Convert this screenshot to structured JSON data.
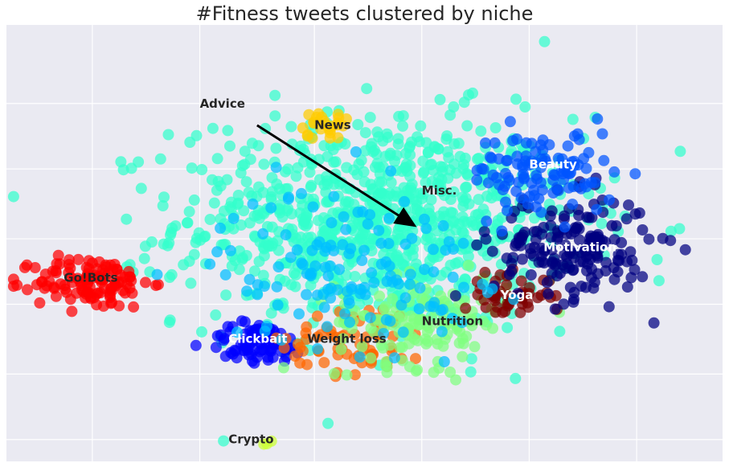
{
  "chart_data": {
    "type": "scatter",
    "title": "#Fitness tweets clustered by niche",
    "xlabel": "",
    "ylabel": "",
    "grid": true,
    "background": "#EAEAF2",
    "xlim": [
      0,
      100
    ],
    "ylim": [
      0,
      100
    ],
    "x_gridlines": [
      12,
      27,
      43,
      58,
      73,
      88
    ],
    "y_gridlines": [
      5,
      20,
      36,
      51,
      67,
      82
    ],
    "clusters": [
      {
        "name": "Go!Bots",
        "color": "#FF0000",
        "label_color": "#262626",
        "center": [
          12,
          41
        ],
        "spread": [
          4,
          3
        ],
        "count": 120,
        "label_at": [
          8,
          42
        ]
      },
      {
        "name": "Clickbait",
        "color": "#0000FF",
        "label_color": "#FFFFFF",
        "center": [
          35,
          27
        ],
        "spread": [
          3.5,
          2.5
        ],
        "count": 80,
        "label_at": [
          31,
          28
        ]
      },
      {
        "name": "Crypto",
        "color": "#CCFF33",
        "label_color": "#262626",
        "center": [
          37,
          4
        ],
        "spread": [
          0.4,
          0.4
        ],
        "count": 3,
        "label_at": [
          31,
          5
        ]
      },
      {
        "name": "Weight loss",
        "color": "#FF6600",
        "label_color": "#262626",
        "center": [
          49,
          28
        ],
        "spread": [
          5,
          4
        ],
        "count": 70,
        "label_at": [
          42,
          28
        ]
      },
      {
        "name": "Nutrition",
        "color": "#7FFF7F",
        "label_color": "#262626",
        "center": [
          58,
          32
        ],
        "spread": [
          6,
          5
        ],
        "count": 140,
        "label_at": [
          58,
          32
        ]
      },
      {
        "name": "Yoga",
        "color": "#800000",
        "label_color": "#FFFFFF",
        "center": [
          70,
          38
        ],
        "spread": [
          3,
          2.5
        ],
        "count": 55,
        "label_at": [
          69,
          38
        ]
      },
      {
        "name": "Motivation",
        "color": "#000080",
        "label_color": "#FFFFFF",
        "center": [
          79,
          49
        ],
        "spread": [
          5.5,
          6
        ],
        "count": 180,
        "label_at": [
          75,
          49
        ]
      },
      {
        "name": "Beauty",
        "color": "#0055FF",
        "label_color": "#FFFFFF",
        "center": [
          75,
          66
        ],
        "spread": [
          5,
          5
        ],
        "count": 110,
        "label_at": [
          73,
          68
        ]
      },
      {
        "name": "News",
        "color": "#FFCC00",
        "label_color": "#262626",
        "center": [
          44,
          77
        ],
        "spread": [
          1.8,
          1.5
        ],
        "count": 25,
        "label_at": [
          43,
          77
        ]
      },
      {
        "name": "Misc.",
        "color": "#33FFCC",
        "label_color": "#262626",
        "center": [
          52,
          55
        ],
        "spread": [
          14,
          12
        ],
        "count": 900,
        "label_at": [
          58,
          62
        ]
      },
      {
        "name": "",
        "color": "#00BFFF",
        "label_color": "#262626",
        "center": [
          48,
          45
        ],
        "spread": [
          9,
          9
        ],
        "count": 140,
        "label_at": null
      }
    ],
    "annotations": [
      {
        "text": "Advice",
        "label_at": [
          27,
          81
        ],
        "arrow_from": [
          35,
          77
        ],
        "arrow_to": [
          57,
          54
        ]
      }
    ]
  }
}
